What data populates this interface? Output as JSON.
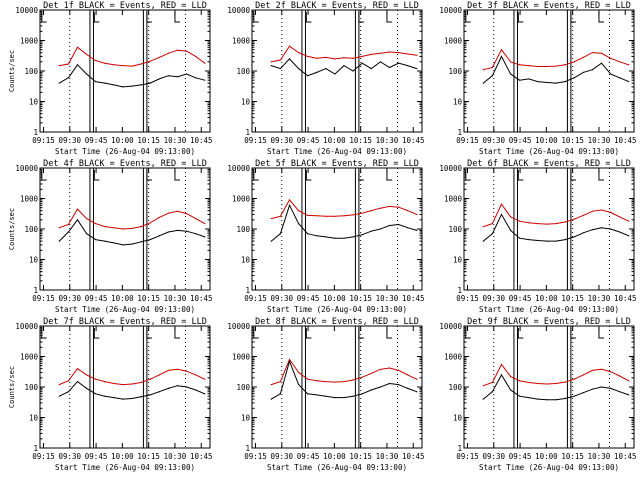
{
  "figure": {
    "y_label": "Counts/sec",
    "x_label": "Start Time (26-Aug-04 09:13:00)",
    "series_colors": {
      "events": "#000000",
      "lld": "#cc0000"
    },
    "x_ticks": [
      "09:15",
      "09:30",
      "09:45",
      "10:00",
      "10:15",
      "10:30",
      "10:45"
    ],
    "y_ticks": [
      "1",
      "10",
      "100",
      "1000",
      "10000"
    ]
  },
  "chart_data": [
    {
      "type": "line",
      "title": "Det 1f BLACK = Events, RED = LLD",
      "events": [
        40,
        60,
        160,
        80,
        45,
        40,
        35,
        30,
        32,
        35,
        40,
        55,
        70,
        65,
        80,
        60,
        50
      ],
      "lld": [
        150,
        170,
        600,
        350,
        220,
        180,
        160,
        150,
        145,
        170,
        210,
        280,
        380,
        480,
        450,
        300,
        180
      ]
    },
    {
      "type": "line",
      "title": "Det 2f BLACK = Events, RED = LLD",
      "events": [
        150,
        120,
        250,
        120,
        70,
        90,
        120,
        80,
        150,
        100,
        180,
        120,
        200,
        130,
        180,
        150,
        120
      ],
      "lld": [
        200,
        230,
        650,
        400,
        300,
        260,
        280,
        250,
        270,
        260,
        300,
        350,
        380,
        420,
        400,
        360,
        330
      ]
    },
    {
      "type": "line",
      "title": "Det 3f BLACK = Events, RED = LLD",
      "events": [
        40,
        70,
        300,
        80,
        50,
        55,
        45,
        42,
        40,
        45,
        60,
        90,
        110,
        180,
        80,
        60,
        45
      ],
      "lld": [
        110,
        130,
        500,
        200,
        160,
        150,
        140,
        140,
        145,
        160,
        200,
        280,
        400,
        380,
        260,
        200,
        160
      ]
    },
    {
      "type": "line",
      "title": "Det 4f BLACK = Events, RED = LLD",
      "events": [
        40,
        80,
        200,
        70,
        45,
        40,
        35,
        30,
        32,
        38,
        45,
        60,
        80,
        90,
        85,
        70,
        55
      ],
      "lld": [
        110,
        140,
        450,
        220,
        150,
        120,
        110,
        100,
        105,
        120,
        160,
        240,
        330,
        380,
        320,
        220,
        150
      ]
    },
    {
      "type": "line",
      "title": "Det 5f BLACK = Events, RED = LLD",
      "events": [
        40,
        70,
        600,
        150,
        70,
        60,
        55,
        50,
        50,
        55,
        65,
        85,
        100,
        130,
        140,
        110,
        90
      ],
      "lld": [
        220,
        260,
        900,
        400,
        280,
        270,
        260,
        260,
        270,
        290,
        330,
        400,
        480,
        550,
        520,
        400,
        300
      ]
    },
    {
      "type": "line",
      "title": "Det 6f BLACK = Events, RED = LLD",
      "events": [
        40,
        70,
        300,
        90,
        50,
        45,
        42,
        40,
        40,
        45,
        55,
        75,
        95,
        110,
        100,
        80,
        60
      ],
      "lld": [
        120,
        150,
        650,
        250,
        180,
        160,
        150,
        145,
        150,
        170,
        210,
        280,
        380,
        420,
        350,
        250,
        180
      ]
    },
    {
      "type": "line",
      "title": "Det 7f BLACK = Events, RED = LLD",
      "events": [
        50,
        70,
        150,
        90,
        60,
        50,
        45,
        40,
        42,
        48,
        55,
        70,
        90,
        110,
        100,
        80,
        60
      ],
      "lld": [
        120,
        160,
        400,
        250,
        180,
        150,
        130,
        120,
        125,
        140,
        180,
        250,
        350,
        380,
        330,
        250,
        180
      ]
    },
    {
      "type": "line",
      "title": "Det 8f BLACK = Events, RED = LLD",
      "events": [
        40,
        60,
        700,
        120,
        60,
        55,
        50,
        45,
        45,
        50,
        60,
        80,
        100,
        130,
        120,
        90,
        70
      ],
      "lld": [
        120,
        150,
        800,
        300,
        180,
        160,
        150,
        145,
        150,
        170,
        210,
        280,
        380,
        420,
        350,
        250,
        180
      ]
    },
    {
      "type": "line",
      "title": "Det 9f BLACK = Events, RED = LLD",
      "events": [
        40,
        70,
        250,
        80,
        50,
        45,
        40,
        38,
        38,
        42,
        50,
        65,
        85,
        100,
        90,
        70,
        55
      ],
      "lld": [
        110,
        140,
        550,
        220,
        160,
        140,
        130,
        125,
        130,
        145,
        180,
        250,
        350,
        380,
        320,
        230,
        160
      ]
    }
  ]
}
